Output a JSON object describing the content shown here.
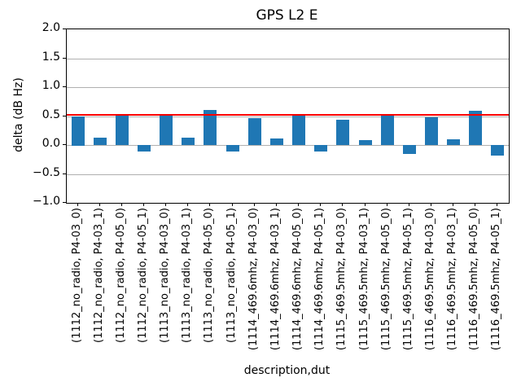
{
  "chart_data": {
    "type": "bar",
    "title": "GPS L2 E",
    "xlabel": "description,dut",
    "ylabel": "delta (dB Hz)",
    "ylim": [
      -1.0,
      2.0
    ],
    "yticks": [
      2.0,
      1.5,
      1.0,
      0.5,
      0.0,
      -0.5,
      -1.0
    ],
    "ytick_labels": [
      "2.0",
      "1.5",
      "1.0",
      "0.5",
      "0.0",
      "−0.5",
      "−1.0"
    ],
    "grid": true,
    "legend_position": "none",
    "bar_color": "#1f77b4",
    "ref_line": {
      "value": 0.52,
      "color": "#ff0000"
    },
    "categories": [
      "(1112_no_radio, P4-03_0)",
      "(1112_no_radio, P4-03_1)",
      "(1112_no_radio, P4-05_0)",
      "(1112_no_radio, P4-05_1)",
      "(1113_no_radio, P4-03_0)",
      "(1113_no_radio, P4-03_1)",
      "(1113_no_radio, P4-05_0)",
      "(1113_no_radio, P4-05_1)",
      "(1114_469.6mhz, P4-03_0)",
      "(1114_469.6mhz, P4-03_1)",
      "(1114_469.6mhz, P4-05_0)",
      "(1114_469.6mhz, P4-05_1)",
      "(1115_469.5mhz, P4-03_0)",
      "(1115_469.5mhz, P4-03_1)",
      "(1115_469.5mhz, P4-05_0)",
      "(1115_469.5mhz, P4-05_1)",
      "(1116_469.5mhz, P4-03_0)",
      "(1116_469.5mhz, P4-03_1)",
      "(1116_469.5mhz, P4-05_0)",
      "(1116_469.5mhz, P4-05_1)"
    ],
    "values": [
      0.5,
      0.12,
      0.53,
      -0.11,
      0.53,
      0.12,
      0.6,
      -0.11,
      0.47,
      0.11,
      0.52,
      -0.11,
      0.43,
      0.09,
      0.53,
      -0.16,
      0.48,
      0.1,
      0.59,
      -0.19
    ]
  }
}
